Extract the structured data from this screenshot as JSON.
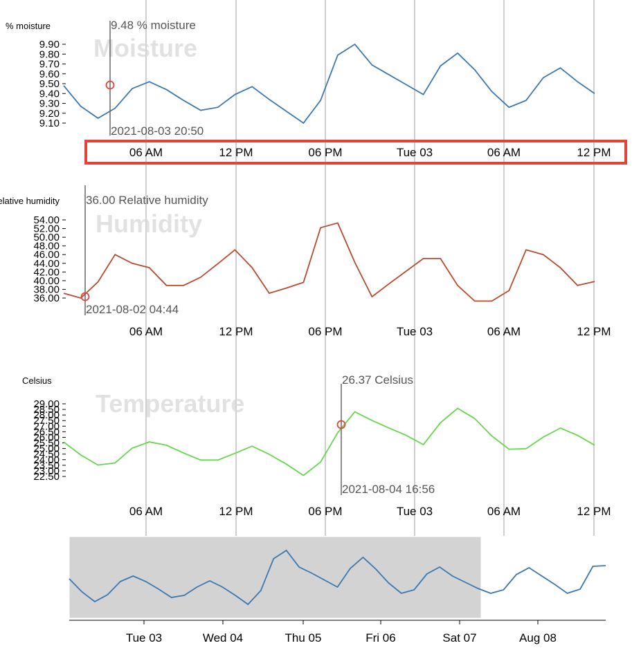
{
  "colors": {
    "moisture": "#3a78b0",
    "humidity": "#b84a2e",
    "temperature": "#66d64a",
    "overview": "#3a78b0",
    "highlight": "#e0443a",
    "brush": "#d3d3d3"
  },
  "x_ticks": [
    "06 AM",
    "12 PM",
    "06 PM",
    "Tue 03",
    "06 AM",
    "12 PM"
  ],
  "overview_ticks": [
    "Tue 03",
    "Wed 04",
    "Thu 05",
    "Fri 06",
    "Sat 07",
    "Aug 08"
  ],
  "chart_data": [
    {
      "type": "line",
      "name": "moisture-chart",
      "title": "Moisture",
      "ylabel": "% moisture",
      "y_ticks": [
        "9.90",
        "9.80",
        "9.70",
        "9.60",
        "9.50",
        "9.40",
        "9.30",
        "9.20",
        "9.10"
      ],
      "ylim": [
        9.1,
        9.9
      ],
      "y_domain": [
        9.03,
        9.9
      ],
      "x_start_label": "2021-08-02 02:00",
      "x_step_hours": 3,
      "values": [
        9.48,
        9.27,
        9.15,
        9.25,
        9.45,
        9.52,
        9.44,
        9.33,
        9.23,
        9.26,
        9.39,
        9.47,
        9.34,
        9.22,
        9.1,
        9.33,
        9.79,
        9.9,
        9.69,
        9.59,
        9.49,
        9.39,
        9.68,
        9.81,
        9.64,
        9.42,
        9.26,
        9.33,
        9.56,
        9.66,
        9.52,
        9.4
      ],
      "tooltip": {
        "value_label": "9.48 % moisture",
        "time_label": "2021-08-03 20:50"
      }
    },
    {
      "type": "line",
      "name": "humidity-chart",
      "title": "Humidity",
      "ylabel": "Relative humidity",
      "y_ticks": [
        "54.00",
        "52.00",
        "50.00",
        "48.00",
        "46.00",
        "44.00",
        "42.00",
        "40.00",
        "38.00",
        "36.00"
      ],
      "ylim": [
        36,
        54
      ],
      "y_domain": [
        35.0,
        54.0
      ],
      "x_start_label": "2021-08-02 02:00",
      "x_step_hours": 3,
      "values": [
        37.1,
        36.0,
        39.7,
        46.0,
        44.0,
        43.0,
        38.9,
        38.9,
        40.8,
        43.9,
        47.1,
        43.0,
        37.1,
        38.3,
        39.6,
        52.2,
        53.3,
        44.2,
        36.3,
        39.3,
        42.2,
        45.1,
        45.1,
        38.9,
        35.3,
        35.3,
        37.7,
        47.1,
        46.0,
        43.0,
        38.9,
        39.8
      ],
      "tooltip": {
        "value_label": "36.00 Relative humidity",
        "time_label": "2021-08-02 04:44"
      }
    },
    {
      "type": "line",
      "name": "temperature-chart",
      "title": "Temperature",
      "ylabel": "Celsius",
      "y_ticks": [
        "29.00",
        "28.50",
        "28.00",
        "27.50",
        "27.00",
        "26.50",
        "26.00",
        "25.50",
        "25.00",
        "24.50",
        "24.00",
        "23.50",
        "23.00",
        "22.50"
      ],
      "ylim": [
        22.5,
        29.0
      ],
      "y_domain": [
        22.06,
        29.0
      ],
      "x_start_label": "2021-08-02 02:00",
      "x_step_hours": 3,
      "values": [
        25.58,
        24.42,
        23.52,
        23.71,
        25.04,
        25.59,
        25.29,
        24.6,
        23.97,
        23.97,
        24.57,
        25.21,
        24.48,
        23.6,
        22.59,
        23.79,
        26.42,
        28.29,
        27.51,
        26.83,
        26.18,
        25.35,
        27.31,
        28.6,
        27.68,
        26.12,
        24.94,
        24.98,
        26.02,
        26.83,
        26.18,
        25.3
      ],
      "tooltip": {
        "value_label": "26.37 Celsius",
        "time_label": "2021-08-04 16:56"
      }
    },
    {
      "type": "line",
      "name": "overview-chart",
      "title": "",
      "values": [
        9.49,
        9.3,
        9.16,
        9.26,
        9.45,
        9.53,
        9.45,
        9.34,
        9.22,
        9.25,
        9.37,
        9.46,
        9.37,
        9.25,
        9.12,
        9.32,
        9.78,
        9.9,
        9.66,
        9.57,
        9.47,
        9.37,
        9.64,
        9.8,
        9.63,
        9.43,
        9.28,
        9.33,
        9.56,
        9.66,
        9.53,
        9.44,
        9.35,
        9.28,
        9.33,
        9.55,
        9.65,
        9.53,
        9.41,
        9.28,
        9.34,
        9.67,
        9.68
      ],
      "brush_range_labels": [
        "Tue 03",
        "Sat 07"
      ]
    }
  ]
}
